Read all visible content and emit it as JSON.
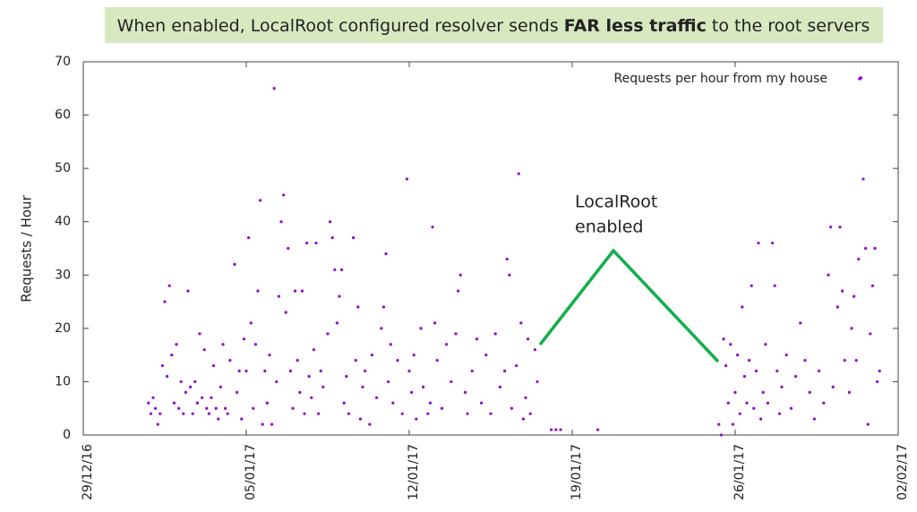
{
  "chart_data": {
    "type": "scatter",
    "title": [
      "When enabled, LocalRoot configured resolver sends ",
      "FAR less traffic",
      " to the root servers"
    ],
    "ylabel": "Requests / Hour",
    "annotation": [
      "LocalRoot",
      "enabled"
    ],
    "legend": "top-right",
    "xlim": [
      0,
      35
    ],
    "xticks": [
      {
        "value": 0,
        "label": "29/12/16"
      },
      {
        "value": 7,
        "label": "05/01/17"
      },
      {
        "value": 14,
        "label": "12/01/17"
      },
      {
        "value": 21,
        "label": "19/01/17"
      },
      {
        "value": 28,
        "label": "26/01/17"
      },
      {
        "value": 35,
        "label": "02/02/17"
      }
    ],
    "ylim": [
      0,
      70
    ],
    "yticks": [
      0,
      10,
      20,
      30,
      40,
      50,
      60,
      70
    ],
    "series": [
      {
        "name": "Requests per hour from my house",
        "color": "#9400d3",
        "x": [
          2.8,
          2.9,
          3.0,
          3.1,
          3.2,
          3.3,
          3.4,
          3.5,
          3.6,
          3.7,
          3.8,
          3.9,
          4.0,
          4.1,
          4.2,
          4.3,
          4.4,
          4.5,
          4.6,
          4.7,
          4.8,
          4.9,
          5.0,
          5.1,
          5.2,
          5.3,
          5.4,
          5.5,
          5.6,
          5.7,
          5.8,
          5.9,
          6.0,
          6.1,
          6.2,
          6.3,
          6.5,
          6.6,
          6.7,
          6.8,
          6.9,
          7.0,
          7.1,
          7.2,
          7.3,
          7.4,
          7.5,
          7.6,
          7.7,
          7.8,
          7.9,
          8.0,
          8.1,
          8.2,
          8.3,
          8.4,
          8.5,
          8.6,
          8.7,
          8.8,
          8.9,
          9.0,
          9.1,
          9.2,
          9.3,
          9.4,
          9.5,
          9.6,
          9.7,
          9.8,
          9.9,
          10.0,
          10.1,
          10.2,
          10.3,
          10.5,
          10.6,
          10.7,
          10.8,
          10.9,
          11.0,
          11.1,
          11.2,
          11.3,
          11.4,
          11.6,
          11.7,
          11.8,
          11.9,
          12.0,
          12.1,
          12.3,
          12.4,
          12.6,
          12.8,
          12.9,
          13.0,
          13.1,
          13.2,
          13.3,
          13.5,
          13.7,
          13.9,
          14.0,
          14.1,
          14.2,
          14.3,
          14.5,
          14.6,
          14.8,
          14.9,
          15.0,
          15.1,
          15.2,
          15.4,
          15.6,
          15.8,
          16.0,
          16.1,
          16.2,
          16.4,
          16.5,
          16.7,
          16.9,
          17.1,
          17.3,
          17.5,
          17.7,
          17.9,
          18.1,
          18.2,
          18.3,
          18.4,
          18.6,
          18.7,
          18.8,
          18.9,
          19.0,
          19.1,
          19.2,
          19.4,
          19.5,
          20.1,
          20.3,
          20.5,
          22.1,
          27.3,
          27.4,
          27.5,
          27.6,
          27.7,
          27.8,
          27.9,
          28.0,
          28.1,
          28.2,
          28.3,
          28.4,
          28.5,
          28.6,
          28.7,
          28.8,
          28.9,
          29.0,
          29.1,
          29.2,
          29.3,
          29.4,
          29.6,
          29.7,
          29.8,
          29.9,
          30.0,
          30.2,
          30.4,
          30.6,
          30.8,
          31.0,
          31.2,
          31.4,
          31.6,
          31.8,
          32.0,
          32.1,
          32.2,
          32.4,
          32.5,
          32.6,
          32.7,
          32.9,
          33.0,
          33.1,
          33.2,
          33.3,
          33.4,
          33.5,
          33.6,
          33.7,
          33.8,
          33.9,
          34.0,
          34.1,
          34.2
        ],
        "values": [
          6,
          4,
          7,
          5,
          2,
          4,
          13,
          25,
          11,
          28,
          15,
          6,
          17,
          5,
          10,
          4,
          8,
          27,
          9,
          4,
          10,
          6,
          19,
          7,
          16,
          5,
          4,
          7,
          13,
          5,
          3,
          9,
          17,
          5,
          4,
          14,
          32,
          8,
          12,
          3,
          18,
          12,
          37,
          21,
          5,
          17,
          27,
          44,
          2,
          12,
          6,
          15,
          2,
          65,
          10,
          26,
          40,
          45,
          23,
          35,
          12,
          5,
          27,
          14,
          8,
          27,
          4,
          36,
          11,
          7,
          16,
          36,
          4,
          12,
          9,
          19,
          40,
          37,
          31,
          21,
          26,
          31,
          6,
          11,
          4,
          37,
          14,
          24,
          3,
          9,
          12,
          2,
          15,
          7,
          20,
          24,
          34,
          10,
          17,
          6,
          14,
          4,
          48,
          12,
          8,
          15,
          3,
          20,
          9,
          4,
          6,
          39,
          21,
          14,
          5,
          17,
          10,
          19,
          27,
          30,
          8,
          4,
          12,
          18,
          6,
          15,
          4,
          19,
          9,
          12,
          33,
          30,
          5,
          13,
          49,
          21,
          3,
          7,
          18,
          4,
          16,
          10,
          1,
          1,
          1,
          1,
          2,
          0,
          18,
          13,
          6,
          17,
          2,
          8,
          15,
          4,
          24,
          11,
          6,
          14,
          28,
          5,
          12,
          36,
          3,
          8,
          17,
          6,
          36,
          28,
          12,
          4,
          9,
          15,
          5,
          11,
          21,
          14,
          8,
          3,
          12,
          6,
          30,
          39,
          9,
          24,
          39,
          27,
          14,
          8,
          20,
          26,
          14,
          33,
          67,
          48,
          35,
          2,
          19,
          28,
          35,
          10,
          12
        ]
      }
    ]
  }
}
